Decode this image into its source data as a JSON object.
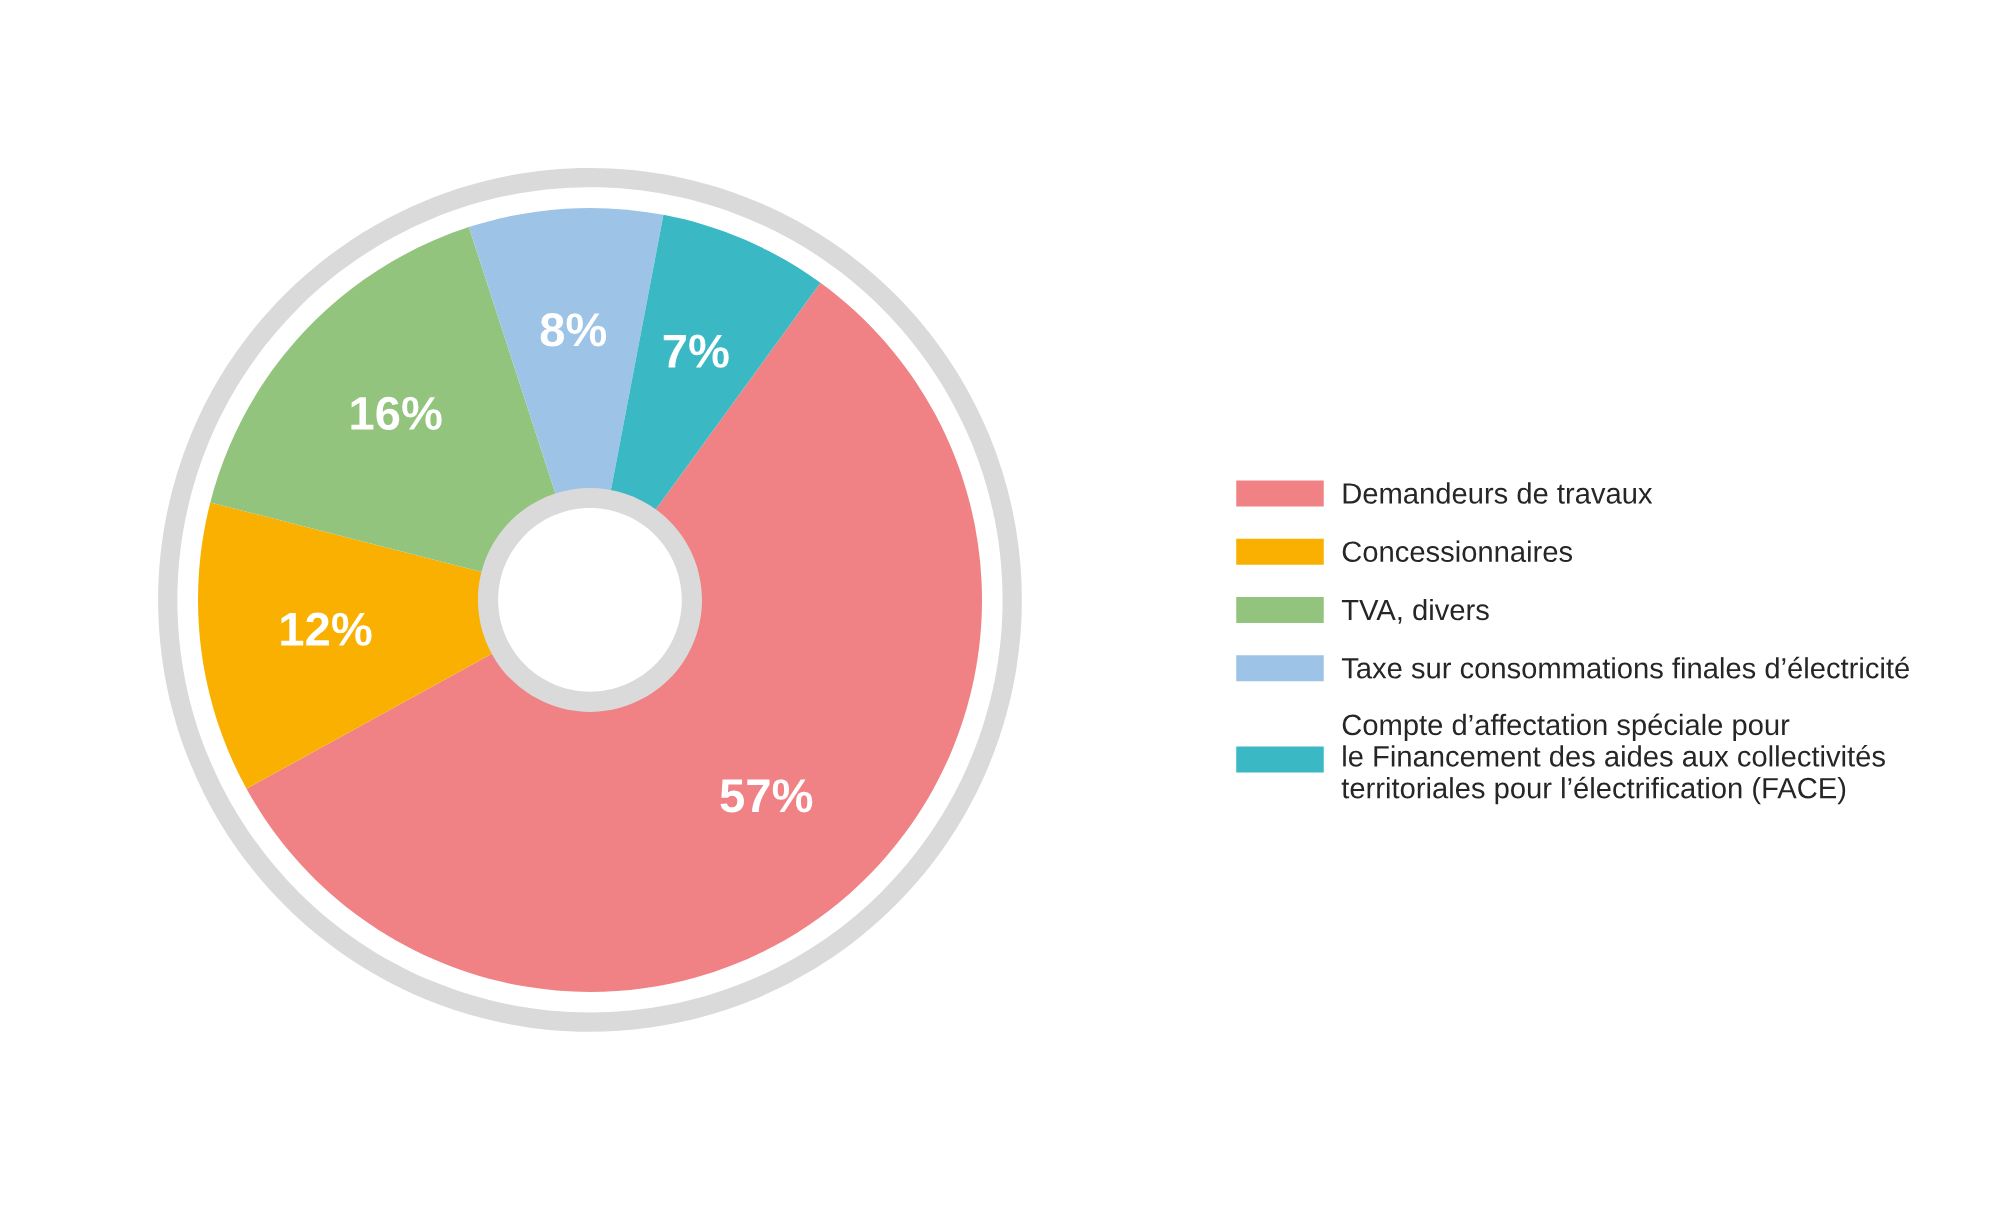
{
  "chart_data": {
    "type": "donut",
    "categories": [
      "Demandeurs de travaux",
      "Concessionnaires",
      "TVA, divers",
      "Taxe sur consommations finales d’électricité",
      "Compte d’affectation spéciale pour\nle Financement des aides aux collectivités\nterritoriales pour l’électrification (FACE)"
    ],
    "values": [
      57,
      12,
      16,
      8,
      7
    ],
    "value_labels": [
      "57%",
      "12%",
      "16%",
      "8%",
      "7%"
    ],
    "colors": [
      "#f08285",
      "#f9b000",
      "#93c47d",
      "#9dc3e6",
      "#3ab8c4"
    ],
    "legend": "right"
  }
}
